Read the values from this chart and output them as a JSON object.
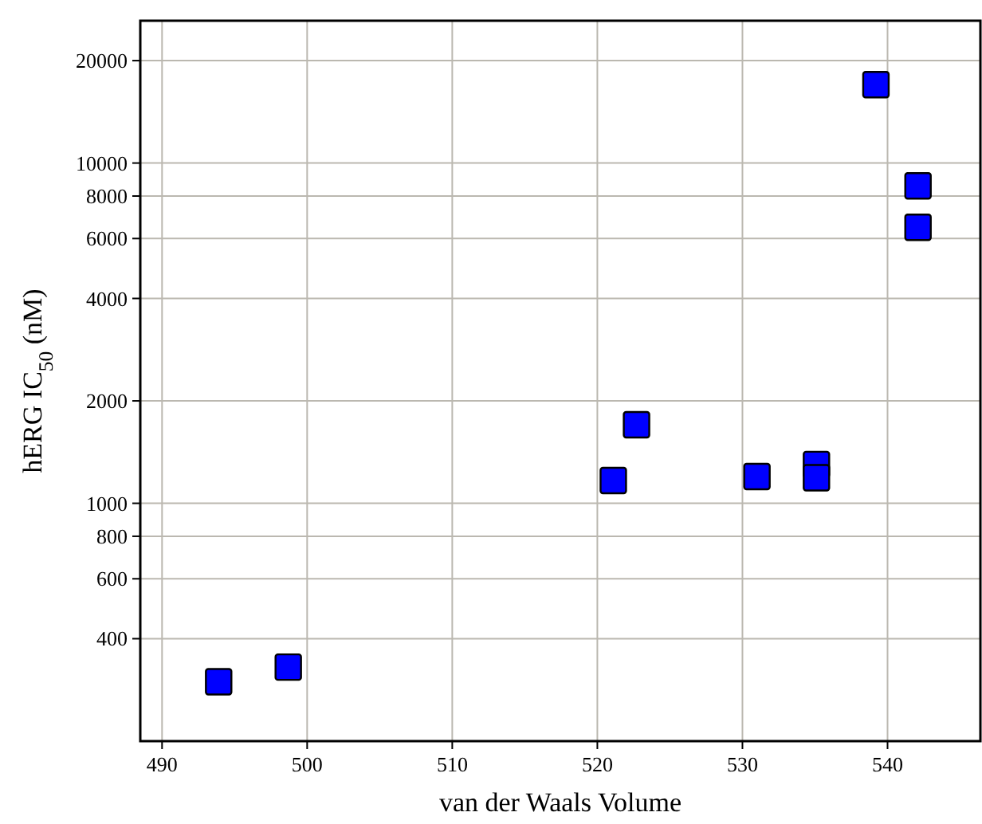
{
  "chart_data": {
    "type": "scatter",
    "xlabel": "van der Waals Volume",
    "ylabel": "hERG IC$_{50}$ (nM)",
    "x": [
      493.9,
      498.7,
      521.1,
      522.7,
      531.0,
      535.1,
      535.1,
      539.2,
      542.1,
      542.1
    ],
    "series": [
      {
        "color": "#0000ff",
        "values": [
          299,
          330,
          1167,
          1701,
          1198,
          1300,
          1189,
          17000,
          8570,
          6475
        ]
      }
    ],
    "xlim": [
      488.5,
      546.4
    ],
    "ylim": [
      200,
      26200
    ],
    "xticks": [
      490,
      500,
      510,
      520,
      530,
      540
    ],
    "yticks": [
      400,
      600,
      800,
      1000,
      2000,
      4000,
      6000,
      8000,
      10000,
      20000
    ],
    "log": "y",
    "grid": true,
    "marker": "square"
  }
}
